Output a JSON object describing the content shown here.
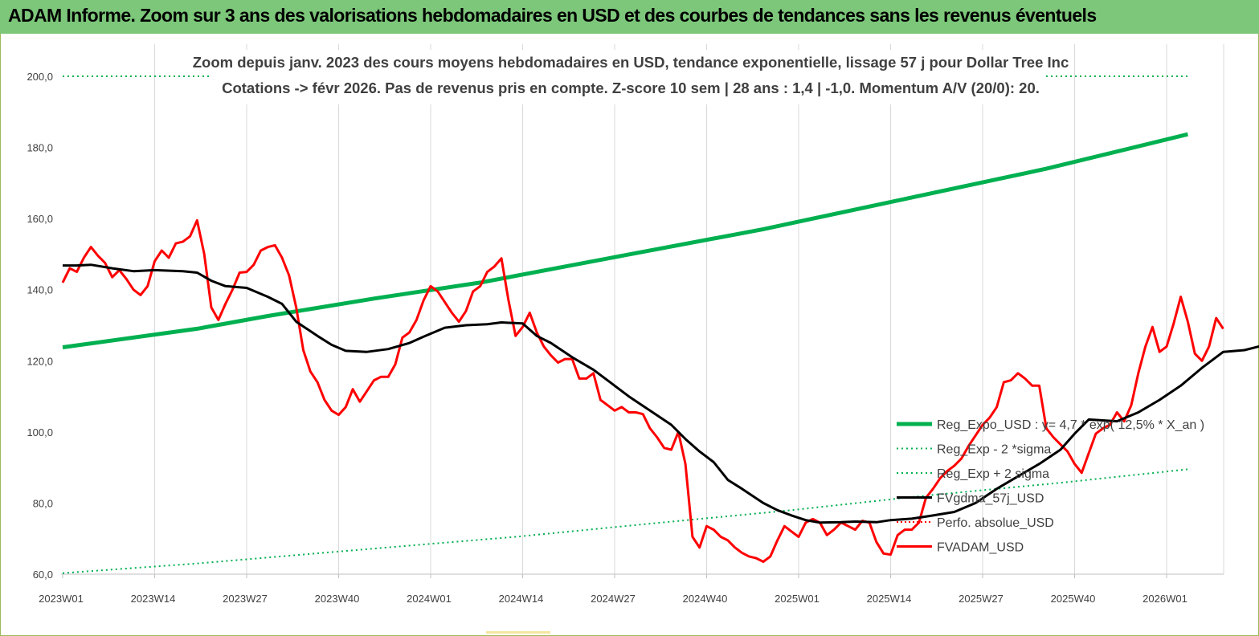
{
  "header": {
    "title": "ADAM Informe. Zoom sur 3 ans des valorisations hebdomadaires en USD et des courbes de tendances sans les revenus éventuels"
  },
  "colors": {
    "header_bg": "#7cc77a",
    "trend": "#00b050",
    "sigma": "#00b050",
    "smooth": "#000000",
    "price": "#ff0000",
    "perf": "#ff0000"
  },
  "chart_data": {
    "type": "line",
    "subtitle_line1": "Zoom depuis janv. 2023 des cours moyens hebdomadaires en USD, tendance exponentielle, lissage 57 j pour Dollar Tree Inc",
    "subtitle_line2": "Cotations -> févr 2026.  Pas de revenus pris en compte. Z-score 10 sem | 28 ans : 1,4 | -1,0. Momentum A/V (20/0): 20.",
    "xlabel": "",
    "ylabel": "",
    "ylim": [
      60,
      200
    ],
    "yticks": [
      "60,0",
      "80,0",
      "100,0",
      "120,0",
      "140,0",
      "160,0",
      "180,0",
      "200,0"
    ],
    "xticks": [
      "2023W01",
      "2023W14",
      "2023W27",
      "2023W40",
      "2024W01",
      "2024W14",
      "2024W27",
      "2024W40",
      "2025W01",
      "2025W14",
      "2025W27",
      "2025W40",
      "2026W01"
    ],
    "grid": "vertical",
    "legend_position": "bottom-right",
    "legend": [
      {
        "label": "Reg_Expo_USD : y= 4,7 * exp( 12,5% *  X_an )",
        "style": "thick"
      },
      {
        "label": "Reg_Exp - 2 *sigma",
        "style": "dotted"
      },
      {
        "label": "Reg_Exp + 2 sigma",
        "style": "dotted"
      },
      {
        "label": "FVgdma_57j_USD",
        "style": "solid"
      },
      {
        "label": "Perfo. absolue_USD",
        "style": "dotted"
      },
      {
        "label": "FVADAM_USD",
        "style": "solid"
      }
    ],
    "series": [
      {
        "key": "trend",
        "values": [
          [
            1,
            123.8
          ],
          [
            20,
            129.0
          ],
          [
            30,
            132.6
          ],
          [
            45,
            137.5
          ],
          [
            60,
            142.0
          ],
          [
            80,
            149.5
          ],
          [
            100,
            157.0
          ],
          [
            120,
            165.5
          ],
          [
            140,
            174.0
          ],
          [
            160,
            183.7
          ]
        ]
      },
      {
        "key": "sigma_upper",
        "values": [
          [
            1,
            200.0
          ],
          [
            30,
            200.0
          ],
          [
            132,
            200.0
          ],
          [
            160,
            200.0
          ]
        ]
      },
      {
        "key": "sigma_lower",
        "values": [
          [
            1,
            60.3
          ],
          [
            20,
            63.0
          ],
          [
            45,
            67.2
          ],
          [
            65,
            70.5
          ],
          [
            84,
            74.2
          ],
          [
            104,
            78.0
          ],
          [
            122,
            81.9
          ],
          [
            142,
            85.7
          ],
          [
            160,
            89.5
          ]
        ]
      },
      {
        "key": "smooth",
        "values": [
          [
            1,
            146.8
          ],
          [
            3,
            146.8
          ],
          [
            5,
            147.0
          ],
          [
            8,
            146.0
          ],
          [
            11,
            145.2
          ],
          [
            14,
            145.5
          ],
          [
            18,
            145.2
          ],
          [
            20,
            144.8
          ],
          [
            22,
            142.5
          ],
          [
            24,
            141.0
          ],
          [
            27,
            140.5
          ],
          [
            30,
            138.0
          ],
          [
            32,
            136.0
          ],
          [
            34,
            131.0
          ],
          [
            37,
            127.0
          ],
          [
            39,
            124.5
          ],
          [
            41,
            122.8
          ],
          [
            44,
            122.5
          ],
          [
            47,
            123.3
          ],
          [
            50,
            125.0
          ],
          [
            52,
            126.8
          ],
          [
            55,
            129.3
          ],
          [
            58,
            130.0
          ],
          [
            61,
            130.3
          ],
          [
            63,
            130.8
          ],
          [
            66,
            130.5
          ],
          [
            68,
            127.0
          ],
          [
            70,
            125.0
          ],
          [
            73,
            121.0
          ],
          [
            76,
            117.5
          ],
          [
            79,
            113.0
          ],
          [
            81,
            110.0
          ],
          [
            84,
            106.0
          ],
          [
            87,
            102.0
          ],
          [
            89,
            98.0
          ],
          [
            91,
            94.5
          ],
          [
            93,
            91.5
          ],
          [
            95,
            86.5
          ],
          [
            97,
            84.0
          ],
          [
            100,
            80.0
          ],
          [
            102,
            78.0
          ],
          [
            104,
            76.5
          ],
          [
            106,
            75.2
          ],
          [
            108,
            74.5
          ],
          [
            111,
            74.6
          ],
          [
            113,
            74.8
          ],
          [
            116,
            74.6
          ],
          [
            118,
            75.2
          ],
          [
            121,
            75.6
          ],
          [
            124,
            76.5
          ],
          [
            127,
            77.5
          ],
          [
            130,
            80.0
          ],
          [
            133,
            84.0
          ],
          [
            136,
            87.5
          ],
          [
            139,
            91.0
          ],
          [
            142,
            95.0
          ],
          [
            144,
            99.5
          ],
          [
            146,
            103.5
          ],
          [
            150,
            103.0
          ],
          [
            153,
            105.5
          ],
          [
            156,
            109.0
          ],
          [
            159,
            113.0
          ],
          [
            162,
            118.0
          ],
          [
            165,
            122.5
          ],
          [
            168,
            123.0
          ],
          [
            170,
            124.0
          ],
          [
            172,
            125.5
          ]
        ]
      },
      {
        "key": "price",
        "values": [
          [
            1,
            142.0
          ],
          [
            2,
            146.0
          ],
          [
            3,
            145.0
          ],
          [
            4,
            149.0
          ],
          [
            5,
            152.0
          ],
          [
            6,
            149.5
          ],
          [
            7,
            147.5
          ],
          [
            8,
            143.5
          ],
          [
            9,
            145.5
          ],
          [
            10,
            143.0
          ],
          [
            11,
            140.0
          ],
          [
            12,
            138.5
          ],
          [
            13,
            141.0
          ],
          [
            14,
            148.0
          ],
          [
            15,
            151.0
          ],
          [
            16,
            149.0
          ],
          [
            17,
            153.0
          ],
          [
            18,
            153.5
          ],
          [
            19,
            155.0
          ],
          [
            20,
            159.5
          ],
          [
            21,
            150.0
          ],
          [
            22,
            135.0
          ],
          [
            23,
            131.5
          ],
          [
            24,
            136.0
          ],
          [
            25,
            140.0
          ],
          [
            26,
            144.8
          ],
          [
            27,
            145.0
          ],
          [
            28,
            147.0
          ],
          [
            29,
            151.0
          ],
          [
            30,
            152.0
          ],
          [
            31,
            152.5
          ],
          [
            32,
            149.0
          ],
          [
            33,
            144.0
          ],
          [
            34,
            135.0
          ],
          [
            35,
            123.0
          ],
          [
            36,
            117.0
          ],
          [
            37,
            114.0
          ],
          [
            38,
            109.0
          ],
          [
            39,
            106.0
          ],
          [
            40,
            104.8
          ],
          [
            41,
            107.0
          ],
          [
            42,
            112.0
          ],
          [
            43,
            108.5
          ],
          [
            44,
            111.5
          ],
          [
            45,
            114.5
          ],
          [
            46,
            115.5
          ],
          [
            47,
            115.5
          ],
          [
            48,
            119.0
          ],
          [
            49,
            126.5
          ],
          [
            50,
            128.0
          ],
          [
            51,
            131.5
          ],
          [
            52,
            137.0
          ],
          [
            53,
            141.0
          ],
          [
            54,
            139.5
          ],
          [
            55,
            136.5
          ],
          [
            56,
            133.5
          ],
          [
            57,
            131.0
          ],
          [
            58,
            134.0
          ],
          [
            59,
            139.5
          ],
          [
            60,
            141.0
          ],
          [
            61,
            145.0
          ],
          [
            62,
            146.5
          ],
          [
            63,
            148.8
          ],
          [
            64,
            137.0
          ],
          [
            65,
            127.0
          ],
          [
            66,
            129.5
          ],
          [
            67,
            133.5
          ],
          [
            68,
            128.0
          ],
          [
            69,
            124.0
          ],
          [
            70,
            121.5
          ],
          [
            71,
            119.5
          ],
          [
            72,
            120.5
          ],
          [
            73,
            120.5
          ],
          [
            74,
            115.0
          ],
          [
            75,
            115.0
          ],
          [
            76,
            116.5
          ],
          [
            77,
            109.0
          ],
          [
            78,
            107.5
          ],
          [
            79,
            106.0
          ],
          [
            80,
            107.0
          ],
          [
            81,
            105.5
          ],
          [
            82,
            105.5
          ],
          [
            83,
            105.0
          ],
          [
            84,
            101.0
          ],
          [
            85,
            98.5
          ],
          [
            86,
            95.5
          ],
          [
            87,
            95.0
          ],
          [
            88,
            100.0
          ],
          [
            89,
            91.0
          ],
          [
            90,
            70.5
          ],
          [
            91,
            67.5
          ],
          [
            92,
            73.5
          ],
          [
            93,
            72.5
          ],
          [
            94,
            70.5
          ],
          [
            95,
            69.5
          ],
          [
            96,
            67.5
          ],
          [
            97,
            66.0
          ],
          [
            98,
            65.0
          ],
          [
            99,
            64.5
          ],
          [
            100,
            63.5
          ],
          [
            101,
            65.0
          ],
          [
            102,
            69.5
          ],
          [
            103,
            73.5
          ],
          [
            104,
            72.0
          ],
          [
            105,
            70.5
          ],
          [
            106,
            74.5
          ],
          [
            107,
            75.5
          ],
          [
            108,
            74.5
          ],
          [
            109,
            71.0
          ],
          [
            110,
            72.5
          ],
          [
            111,
            74.5
          ],
          [
            112,
            73.5
          ],
          [
            113,
            72.5
          ],
          [
            114,
            75.0
          ],
          [
            115,
            74.5
          ],
          [
            116,
            69.0
          ],
          [
            117,
            65.8
          ],
          [
            118,
            65.5
          ],
          [
            119,
            71.0
          ],
          [
            120,
            72.5
          ],
          [
            121,
            72.5
          ],
          [
            122,
            74.5
          ],
          [
            123,
            81.5
          ],
          [
            124,
            84.0
          ],
          [
            125,
            87.0
          ],
          [
            126,
            89.0
          ],
          [
            127,
            90.5
          ],
          [
            128,
            92.5
          ],
          [
            129,
            96.0
          ],
          [
            130,
            99.0
          ],
          [
            131,
            102.0
          ],
          [
            132,
            104.0
          ],
          [
            133,
            107.0
          ],
          [
            134,
            114.0
          ],
          [
            135,
            114.5
          ],
          [
            136,
            116.5
          ],
          [
            137,
            115.0
          ],
          [
            138,
            113.0
          ],
          [
            139,
            113.0
          ],
          [
            140,
            101.0
          ],
          [
            141,
            98.5
          ],
          [
            142,
            96.5
          ],
          [
            143,
            94.5
          ],
          [
            144,
            91.0
          ],
          [
            145,
            88.5
          ],
          [
            146,
            94.0
          ],
          [
            147,
            99.5
          ],
          [
            148,
            101.0
          ],
          [
            149,
            102.0
          ],
          [
            150,
            105.5
          ],
          [
            151,
            103.0
          ],
          [
            152,
            107.5
          ],
          [
            153,
            116.5
          ],
          [
            154,
            124.0
          ],
          [
            155,
            129.5
          ],
          [
            156,
            122.5
          ],
          [
            157,
            124.0
          ],
          [
            158,
            130.5
          ],
          [
            159,
            138.0
          ],
          [
            160,
            131.0
          ],
          [
            161,
            122.0
          ],
          [
            162,
            120.0
          ],
          [
            163,
            124.0
          ],
          [
            164,
            132.0
          ],
          [
            165,
            129.0
          ]
        ]
      }
    ]
  }
}
